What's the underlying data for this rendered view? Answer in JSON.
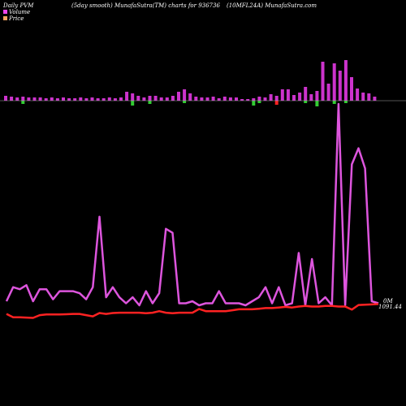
{
  "header": {
    "t1": "Daily PVM",
    "t2": "(5day smooth) MunafaSutra(TM) charts for 936736",
    "t3": "(10MFL24A) MunafaSutra.com"
  },
  "legend": [
    {
      "label": "Volume",
      "color": "#ee44ee"
    },
    {
      "label": "Price",
      "color": "#f4a460"
    }
  ],
  "colors": {
    "background": "#000000",
    "bar_up": "#cc33cc",
    "bar_down_under": "#33cc33",
    "bar_red": "#ff2222",
    "volume_line": "#dd55dd",
    "price_line": "#ff2222",
    "baseline": "#aaaaaa"
  },
  "end_labels": {
    "volume": "0M",
    "price": "1091.44"
  },
  "chart_data": {
    "type": "line",
    "title": "",
    "xlabel": "",
    "ylabel": "",
    "count": 57,
    "series": [
      {
        "name": "Volume",
        "values": [
          2,
          9,
          8,
          10,
          2,
          8,
          8,
          3,
          7,
          7,
          7,
          6,
          3,
          9,
          44,
          4,
          9,
          4,
          1,
          4,
          0,
          7,
          1,
          6,
          38,
          36,
          1,
          1,
          2,
          0,
          1,
          1,
          7,
          1,
          1,
          1,
          0,
          2,
          4,
          9,
          1,
          9,
          0,
          1,
          26,
          0,
          23,
          1,
          4,
          0,
          100,
          0,
          70,
          78,
          68,
          2,
          1
        ]
      },
      {
        "name": "Price",
        "values": [
          1088.2,
          1087.1,
          1087.1,
          1087.0,
          1086.9,
          1087.8,
          1088.0,
          1088.0,
          1088.0,
          1088.1,
          1088.2,
          1088.2,
          1087.8,
          1087.4,
          1088.5,
          1088.2,
          1088.5,
          1088.6,
          1088.6,
          1088.6,
          1088.6,
          1088.4,
          1088.6,
          1089.1,
          1088.6,
          1088.4,
          1088.6,
          1088.6,
          1088.6,
          1089.8,
          1089.1,
          1089.1,
          1089.1,
          1089.1,
          1089.4,
          1089.7,
          1089.7,
          1089.7,
          1089.9,
          1090.1,
          1090.1,
          1090.3,
          1090.5,
          1090.3,
          1090.6,
          1090.8,
          1090.6,
          1090.6,
          1090.8,
          1090.8,
          1090.6,
          1090.6,
          1089.6,
          1091.1,
          1091.2,
          1091.3,
          1091.44
        ]
      }
    ],
    "bar_heights": [
      6,
      5,
      4,
      5,
      4,
      4,
      4,
      3,
      4,
      3,
      4,
      3,
      3,
      4,
      3,
      4,
      3,
      3,
      4,
      3,
      4,
      11,
      9,
      6,
      4,
      6,
      6,
      4,
      4,
      6,
      11,
      14,
      9,
      5,
      4,
      4,
      5,
      3,
      5,
      4,
      4,
      2,
      2,
      3,
      5,
      4,
      8,
      6,
      14,
      14,
      7,
      10,
      17,
      8,
      12,
      48,
      21,
      46,
      37,
      50,
      29,
      15,
      10,
      9,
      5
    ],
    "bar_red_under": [
      47
    ],
    "bar_green_under": [
      3,
      22,
      25,
      31,
      43,
      44,
      52,
      54,
      57,
      59
    ],
    "bar_down_under_length": [
      4,
      6,
      4,
      3,
      6,
      3,
      3,
      7,
      4,
      3
    ]
  }
}
